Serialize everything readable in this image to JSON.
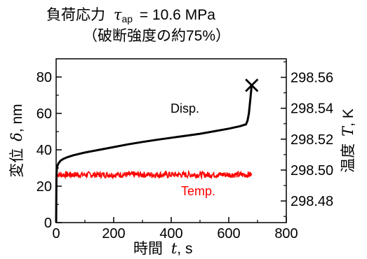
{
  "chart_data": {
    "type": "line",
    "title": {
      "line1_text": "負荷応力",
      "line1_symbol": "τ",
      "line1_subscript": "ap",
      "line1_value": "= 10.6 MPa",
      "line2": "（破断強度の約75%）"
    },
    "xlabel": {
      "text": "時間",
      "symbol": "t",
      "unit": ", s"
    },
    "ylabel_left": {
      "text": "変位",
      "symbol": "δ",
      "unit": ", nm",
      "color": "#000000"
    },
    "ylabel_right": {
      "text": "温度",
      "symbol": "T",
      "unit": ", K",
      "color": "#ff0000"
    },
    "xlim": [
      0,
      800
    ],
    "ylim_left": [
      0,
      90
    ],
    "ylim_right": [
      298.466,
      298.572
    ],
    "x_ticks": [
      "0",
      "200",
      "400",
      "600",
      "800"
    ],
    "y_left_ticks": [
      "0",
      "20",
      "40",
      "60",
      "80"
    ],
    "y_right_ticks": [
      "298.48",
      "298.50",
      "298.52",
      "298.54",
      "298.56"
    ],
    "grid": false,
    "series": [
      {
        "name": "Disp.",
        "axis": "left",
        "color": "#000000",
        "x": [
          0,
          1,
          2,
          4,
          8,
          15,
          25,
          40,
          60,
          100,
          150,
          200,
          250,
          300,
          350,
          400,
          450,
          500,
          550,
          600,
          640,
          660,
          665,
          670,
          675,
          680
        ],
        "y": [
          0,
          24,
          29,
          31,
          32.5,
          34,
          35,
          36,
          37,
          38.5,
          40,
          41.5,
          43,
          44.3,
          45.5,
          46.6,
          47.7,
          48.8,
          50.2,
          51.6,
          53,
          54,
          56,
          60,
          68,
          76
        ]
      },
      {
        "name": "Temp.",
        "axis": "right",
        "color": "#ff0000",
        "x_range": [
          0,
          680
        ],
        "mean": 298.497,
        "noise": 0.002
      }
    ],
    "fracture_marker": {
      "symbol": "×",
      "x": 680,
      "y": 76
    }
  }
}
